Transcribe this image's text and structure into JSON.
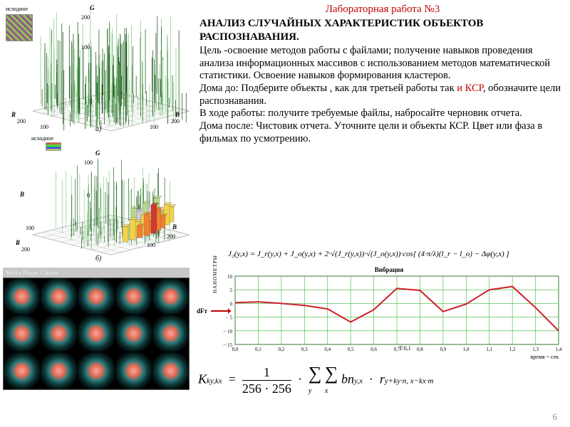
{
  "title": "Лабораторная работа №3",
  "heading": "АНАЛИЗ СЛУЧАЙНЫХ ХАРАКТЕРИСТИК ОБЪЕКТОВ РАСПОЗНАВАНИЯ.",
  "body": {
    "p1": "Цель -освоение методов работы с файлами; получение навыков  проведения анализа информационных массивов с использованием методов математической статистики. Освоение навыков формирования кластеров.",
    "p2a": "Дома до: Подберите объекты , как для третьей работы так ",
    "p2_red": "и КСР",
    "p2b": ", обозначите цели распознавания.",
    "p3": "В ходе работы: получите требуемые файлы, набросайте черновик отчета.",
    "p4": "Дома после: Чистовик отчета. Уточните цели и объекты КСР. Цвет или фаза в фильмах по усмотрению."
  },
  "figures": {
    "source_label": "исходное",
    "panel_a": "а)",
    "panel_b": "б)",
    "axes": {
      "R": "R",
      "G": "G",
      "B": "B"
    },
    "ticks": [
      "0",
      "100",
      "200"
    ],
    "stem_color_dark": "#0a4d0a",
    "stem_color_light": "#7bc47b",
    "bars_colors": [
      "#d7c7f0",
      "#b8d98a",
      "#f2d24a",
      "#f08030",
      "#d03a2a"
    ],
    "grid_color": "#bdbdbd"
  },
  "media_bar": "Media Player Classic",
  "thumb": {
    "rows": 3,
    "cols": 5
  },
  "formula1": "J₂(y,x) = J_r(y,x) + J_o(y,x) + 2·√(J_r(y,x))·√(J_o(y,x))·cos[ (4·π/λ)(l_r − l_o) − Δφ(y,x) ]",
  "vibration": {
    "title": "Вибрация",
    "ylabel": "НАНОМЕТРЫ",
    "xlabel": "время ~ сек",
    "mid_label": "T:0,1",
    "dft_label": "dFт",
    "x": [
      0,
      0.1,
      0.2,
      0.3,
      0.4,
      0.5,
      0.6,
      0.7,
      0.8,
      0.9,
      1.0,
      1.1,
      1.2,
      1.3,
      1.4
    ],
    "y": [
      0.3,
      0.6,
      0.0,
      -0.7,
      -2.0,
      -6.8,
      -2.3,
      5.5,
      4.8,
      -3.0,
      -0.2,
      5.0,
      6.2,
      -1.5,
      -10.0
    ],
    "ylim": [
      -15,
      10
    ],
    "ystep": 5,
    "line_color": "#d02028",
    "line_width": 2,
    "grid_color": "#3cb83c",
    "bg": "#ffffff",
    "axis_color": "#000"
  },
  "formula2": {
    "lhs_K": "K",
    "lhs_sub": "ky,kx",
    "frac_num": "1",
    "frac_den": "256 · 256",
    "sigma_y": "y",
    "sigma_x": "x",
    "term_bn": "bn",
    "term_bn_sub": "y,x",
    "term_r": "r",
    "term_r_sub": "y+ky·n, x−kx·m"
  },
  "page_number": "6"
}
